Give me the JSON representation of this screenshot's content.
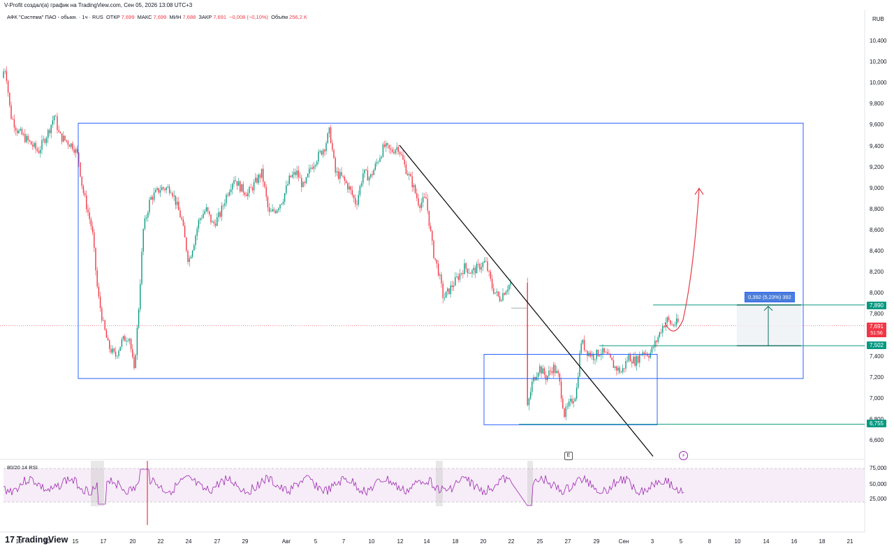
{
  "header": {
    "attribution": "V-Profit создал(а) график на TradingView.com, Сен 05, 2026 13:08 UTC+3"
  },
  "legend": {
    "symbol": "АФК \"Система\" ПАО - обыкн. · 1ч · RUS",
    "open_label": "ОТКР",
    "open_value": "7,699",
    "high_label": "МАКС",
    "high_value": "7,699",
    "low_label": "МИН",
    "low_value": "7,688",
    "close_label": "ЗАКР",
    "close_value": "7,691",
    "change": "−0,008 (−0,10%)",
    "volume_label": "Объём",
    "volume_value": "256,2 K"
  },
  "currency": "RUB",
  "rsi_label": "80/20 14 RSI",
  "measure_label": "0,392 (5,23%) 392",
  "brand": {
    "icon": "17",
    "name": "TradingView"
  },
  "event_markers": {
    "earnings": "E",
    "dividend": "⚡"
  },
  "price_tags": [
    {
      "value": "7,890",
      "color": "#089981"
    },
    {
      "value": "7,691",
      "sub": "51:56",
      "color": "#f23645"
    },
    {
      "value": "7,502",
      "color": "#089981"
    },
    {
      "value": "6,755",
      "color": "#089981"
    }
  ],
  "colors": {
    "up": "#089981",
    "down": "#f23645",
    "box": "#2962ff",
    "trend": "#000000",
    "arrow": "#e53946",
    "rsi": "#9c27b0"
  },
  "chart_data": {
    "type": "candlestick",
    "ylim": [
      6.5,
      10.5
    ],
    "y_ticks": [
      "10,400",
      "10,200",
      "10,000",
      "9,800",
      "9,600",
      "9,400",
      "9,200",
      "9,000",
      "8,800",
      "8,600",
      "8,400",
      "8,200",
      "8,000",
      "7,800",
      "7,600",
      "7,400",
      "7,200",
      "7,000",
      "6,800",
      "6,600"
    ],
    "x_ticks": [
      "10",
      "13",
      "15",
      "17",
      "20",
      "22",
      "24",
      "27",
      "29",
      "Авг",
      "5",
      "7",
      "10",
      "12",
      "14",
      "18",
      "20",
      "22",
      "25",
      "27",
      "29",
      "Сен",
      "3",
      "5",
      "8",
      "10",
      "14",
      "16",
      "18",
      "21"
    ],
    "rsi_ticks": [
      "75,000",
      "50,000",
      "25,000"
    ],
    "approx_path": [
      [
        0,
        10.05
      ],
      [
        8,
        10.15
      ],
      [
        15,
        9.7
      ],
      [
        25,
        9.55
      ],
      [
        40,
        9.45
      ],
      [
        55,
        9.35
      ],
      [
        70,
        9.55
      ],
      [
        78,
        9.7
      ],
      [
        85,
        9.5
      ],
      [
        95,
        9.45
      ],
      [
        105,
        9.4
      ],
      [
        112,
        9.3
      ],
      [
        118,
        9.0
      ],
      [
        125,
        8.8
      ],
      [
        132,
        8.6
      ],
      [
        140,
        8.0
      ],
      [
        148,
        7.7
      ],
      [
        155,
        7.5
      ],
      [
        165,
        7.4
      ],
      [
        175,
        7.55
      ],
      [
        185,
        7.6
      ],
      [
        192,
        7.25
      ],
      [
        198,
        7.8
      ],
      [
        205,
        8.6
      ],
      [
        215,
        8.9
      ],
      [
        230,
        9.0
      ],
      [
        245,
        9.0
      ],
      [
        260,
        8.7
      ],
      [
        270,
        8.3
      ],
      [
        278,
        8.5
      ],
      [
        285,
        8.7
      ],
      [
        295,
        8.8
      ],
      [
        305,
        8.65
      ],
      [
        315,
        8.75
      ],
      [
        325,
        8.95
      ],
      [
        335,
        9.1
      ],
      [
        345,
        9.0
      ],
      [
        355,
        8.95
      ],
      [
        365,
        9.05
      ],
      [
        375,
        9.15
      ],
      [
        385,
        8.75
      ],
      [
        395,
        8.8
      ],
      [
        405,
        8.9
      ],
      [
        415,
        9.1
      ],
      [
        425,
        9.15
      ],
      [
        435,
        9.0
      ],
      [
        445,
        9.2
      ],
      [
        455,
        9.3
      ],
      [
        465,
        9.4
      ],
      [
        472,
        9.55
      ],
      [
        480,
        9.15
      ],
      [
        490,
        9.1
      ],
      [
        500,
        9.0
      ],
      [
        510,
        8.85
      ],
      [
        520,
        9.15
      ],
      [
        530,
        9.1
      ],
      [
        540,
        9.25
      ],
      [
        550,
        9.4
      ],
      [
        560,
        9.35
      ],
      [
        570,
        9.4
      ],
      [
        580,
        9.2
      ],
      [
        590,
        9.05
      ],
      [
        600,
        8.85
      ],
      [
        610,
        8.9
      ],
      [
        620,
        8.4
      ],
      [
        628,
        8.2
      ],
      [
        635,
        7.95
      ],
      [
        645,
        8.05
      ],
      [
        655,
        8.15
      ],
      [
        665,
        8.25
      ],
      [
        675,
        8.2
      ],
      [
        685,
        8.25
      ],
      [
        695,
        8.3
      ],
      [
        705,
        8.05
      ],
      [
        715,
        7.95
      ],
      [
        725,
        8.05
      ],
      [
        732,
        8.1
      ],
      [
        755,
        6.9
      ],
      [
        762,
        7.15
      ],
      [
        772,
        7.3
      ],
      [
        782,
        7.2
      ],
      [
        792,
        7.3
      ],
      [
        800,
        7.2
      ],
      [
        808,
        6.85
      ],
      [
        816,
        6.95
      ],
      [
        825,
        7.05
      ],
      [
        832,
        7.55
      ],
      [
        840,
        7.45
      ],
      [
        850,
        7.4
      ],
      [
        860,
        7.45
      ],
      [
        870,
        7.4
      ],
      [
        880,
        7.3
      ],
      [
        890,
        7.25
      ],
      [
        900,
        7.4
      ],
      [
        910,
        7.35
      ],
      [
        920,
        7.45
      ],
      [
        930,
        7.42
      ],
      [
        940,
        7.55
      ],
      [
        948,
        7.68
      ],
      [
        955,
        7.75
      ],
      [
        962,
        7.7
      ],
      [
        970,
        7.72
      ]
    ],
    "annotations": [
      {
        "type": "rectangle",
        "from": [
          "x≈112px",
          9.62
        ],
        "to": [
          "x≈1150px",
          7.19
        ]
      },
      {
        "type": "rectangle",
        "from": [
          "x≈693px",
          7.42
        ],
        "to": [
          "x≈941px",
          6.75
        ]
      },
      {
        "type": "trendline",
        "from": [
          9.41
        ],
        "to": [
          6.45
        ]
      },
      {
        "type": "hline",
        "value": 7.89
      },
      {
        "type": "hline",
        "value": 7.502
      },
      {
        "type": "hline",
        "value": 6.755
      },
      {
        "type": "price_range",
        "from": 7.502,
        "to": 7.89,
        "label": "0,392 (5,23%) 392"
      },
      {
        "type": "projection_arrow",
        "target": 9.0
      }
    ]
  }
}
